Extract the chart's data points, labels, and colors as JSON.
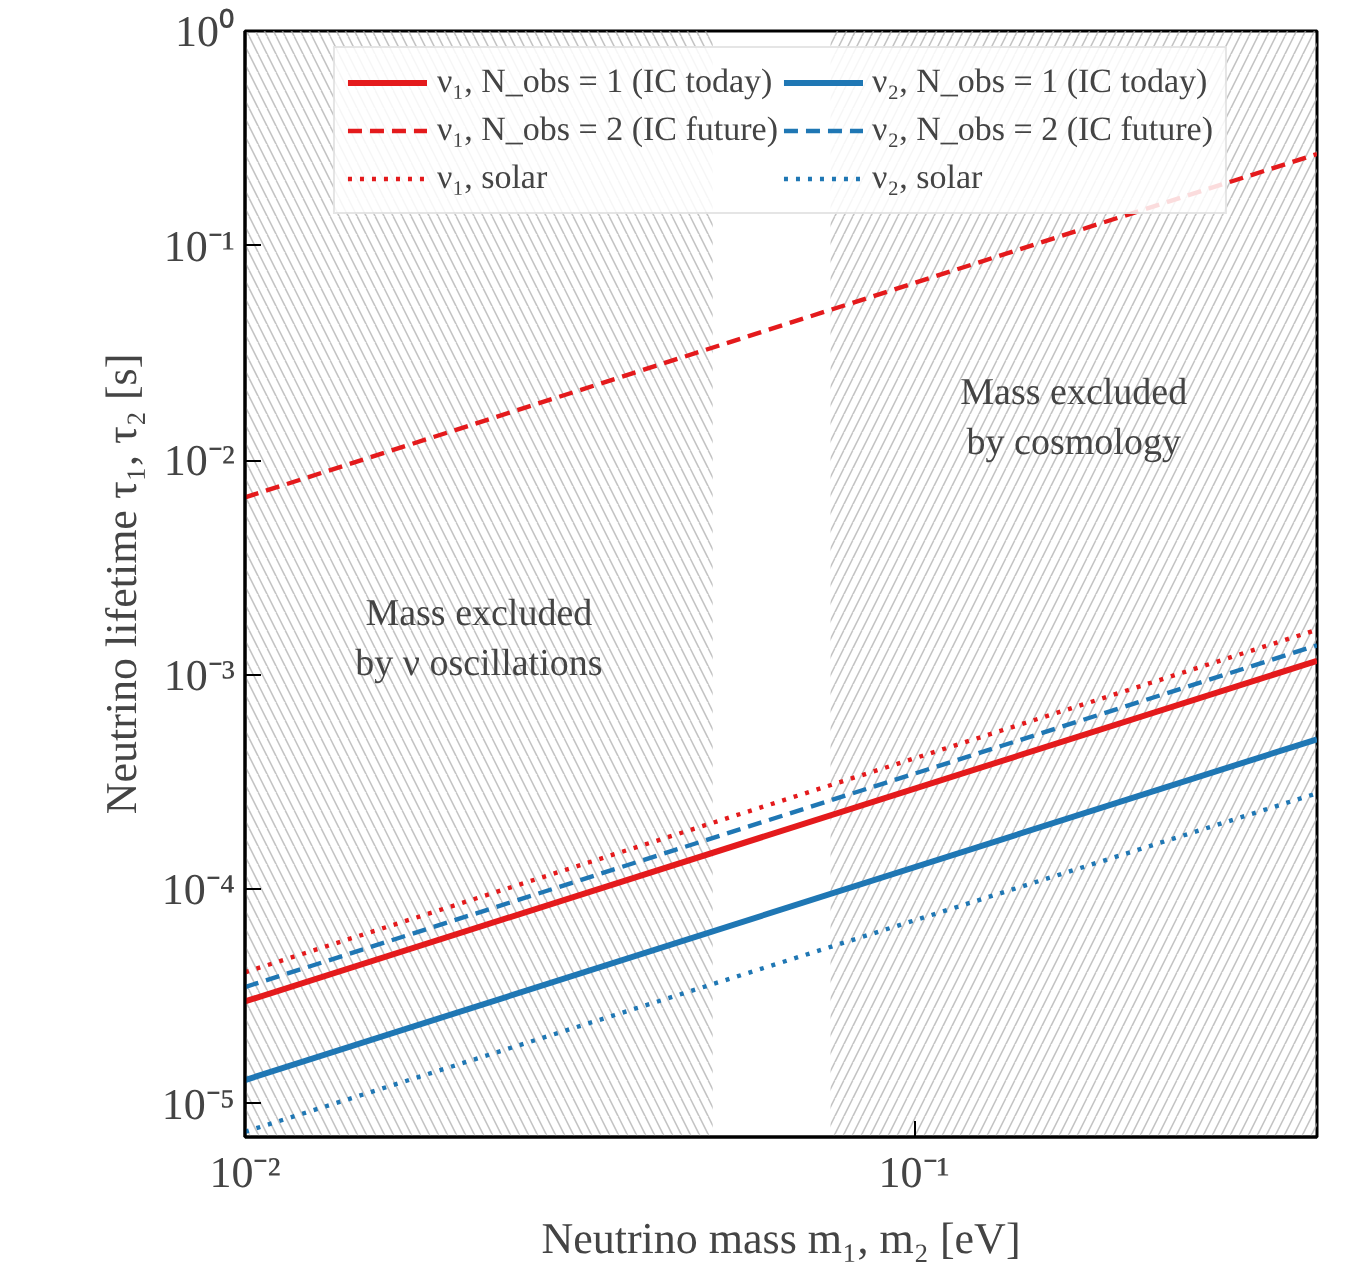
{
  "chart_data": {
    "type": "line",
    "xlabel": "Neutrino mass m₁, m₂ [eV]",
    "ylabel": "Neutrino lifetime τ₁, τ₂ [s]",
    "x": [
      0.01,
      0.4
    ],
    "log": "xy",
    "xlim": [
      0.01,
      0.4
    ],
    "ylim": [
      7e-06,
      1
    ],
    "xticks": [
      {
        "value": 0.01,
        "label": "10⁻²"
      },
      {
        "value": 0.1,
        "label": "10⁻¹"
      }
    ],
    "yticks": [
      {
        "value": 1e-05,
        "label": "10⁻⁵"
      },
      {
        "value": 0.0001,
        "label": "10⁻⁴"
      },
      {
        "value": 0.001,
        "label": "10⁻³"
      },
      {
        "value": 0.01,
        "label": "10⁻²"
      },
      {
        "value": 0.1,
        "label": "10⁻¹"
      },
      {
        "value": 1,
        "label": "10⁰"
      }
    ],
    "grid": false,
    "legend": "top",
    "series": [
      {
        "name": "ν₁, N_obs = 1 (IC today)",
        "color": "#e41a1c",
        "line_style": "solid",
        "values": [
          3e-05,
          0.00116
        ]
      },
      {
        "name": "ν₁, N_obs = 2 (IC future)",
        "color": "#e41a1c",
        "line_style": "dashed",
        "values": [
          0.0067,
          0.267
        ]
      },
      {
        "name": "ν₁, solar",
        "color": "#e41a1c",
        "line_style": "dotted",
        "values": [
          4.1e-05,
          0.00162
        ]
      },
      {
        "name": "ν₂, N_obs = 1 (IC today)",
        "color": "#1f77b4",
        "line_style": "solid",
        "values": [
          1.29e-05,
          0.0005
        ]
      },
      {
        "name": "ν₂, N_obs = 2 (IC future)",
        "color": "#1f77b4",
        "line_style": "dashed",
        "values": [
          3.5e-05,
          0.00137
        ]
      },
      {
        "name": "ν₂, solar",
        "color": "#1f77b4",
        "line_style": "dotted",
        "values": [
          7.4e-06,
          0.00028
        ]
      }
    ],
    "bands": [
      {
        "axis": "x",
        "from": 0.01,
        "to": 0.05,
        "label": "Mass excluded\nby ν oscillations",
        "color": "#aaaaaa"
      },
      {
        "axis": "x",
        "from": 0.075,
        "to": 0.4,
        "label": "Mass excluded\nby cosmology",
        "color": "#aaaaaa"
      }
    ]
  }
}
